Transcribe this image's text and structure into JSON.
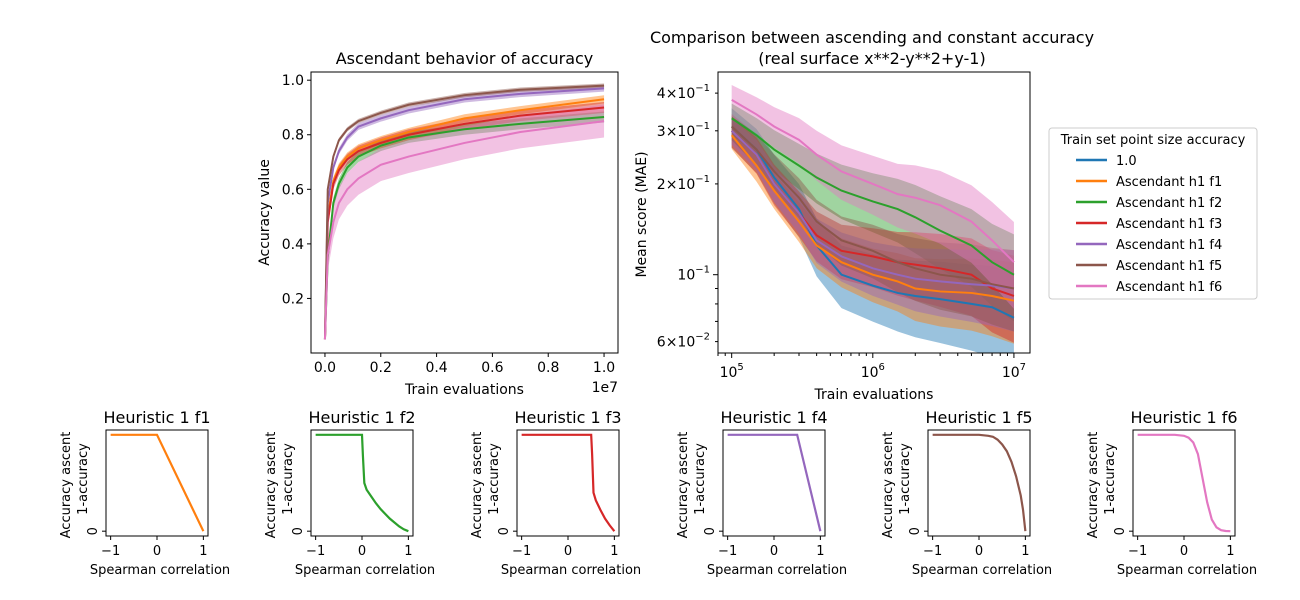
{
  "chart_data": [
    {
      "id": "accuracy",
      "type": "line",
      "title": "Ascendant behavior of accuracy",
      "xlabel": "Train evaluations",
      "ylabel": "Accuracy value",
      "x_offset_label": "1e7",
      "xlim": [
        -0.05,
        1.05
      ],
      "ylim": [
        0.0,
        1.03
      ],
      "x_ticks": [
        0.0,
        0.2,
        0.4,
        0.6,
        0.8,
        1.0
      ],
      "x_tick_labels": [
        "0.0",
        "0.2",
        "0.4",
        "0.6",
        "0.8",
        "1.0"
      ],
      "y_ticks": [
        0.2,
        0.4,
        0.6,
        0.8,
        1.0
      ],
      "y_tick_labels": [
        "0.2",
        "0.4",
        "0.6",
        "0.8",
        "1.0"
      ],
      "x": [
        0.0,
        0.01,
        0.03,
        0.05,
        0.08,
        0.12,
        0.2,
        0.3,
        0.5,
        0.7,
        1.0
      ],
      "series": [
        {
          "name": "Ascendant h1 f1",
          "color": "#ff7f0e",
          "values": [
            0.05,
            0.5,
            0.63,
            0.68,
            0.72,
            0.75,
            0.78,
            0.81,
            0.86,
            0.89,
            0.93
          ],
          "band": 0.015
        },
        {
          "name": "Ascendant h1 f2",
          "color": "#2ca02c",
          "values": [
            0.05,
            0.35,
            0.55,
            0.62,
            0.68,
            0.72,
            0.76,
            0.79,
            0.82,
            0.84,
            0.865
          ],
          "band": 0.02
        },
        {
          "name": "Ascendant h1 f3",
          "color": "#d62728",
          "values": [
            0.05,
            0.48,
            0.62,
            0.67,
            0.71,
            0.74,
            0.77,
            0.8,
            0.84,
            0.87,
            0.9
          ],
          "band": 0.02
        },
        {
          "name": "Ascendant h1 f4",
          "color": "#9467bd",
          "values": [
            0.05,
            0.55,
            0.68,
            0.74,
            0.79,
            0.83,
            0.86,
            0.89,
            0.93,
            0.95,
            0.97
          ],
          "band": 0.012
        },
        {
          "name": "Ascendant h1 f5",
          "color": "#8c564b",
          "values": [
            0.05,
            0.6,
            0.72,
            0.78,
            0.82,
            0.85,
            0.88,
            0.91,
            0.945,
            0.965,
            0.98
          ],
          "band": 0.008
        },
        {
          "name": "Ascendant h1 f6",
          "color": "#e377c2",
          "values": [
            0.05,
            0.36,
            0.48,
            0.55,
            0.6,
            0.64,
            0.69,
            0.72,
            0.77,
            0.81,
            0.85
          ],
          "band": 0.06
        }
      ]
    },
    {
      "id": "comparison",
      "type": "line",
      "title": "Comparison between ascending and constant accuracy",
      "subtitle": "(real surface x**2-y**2+y-1)",
      "xlabel": "Train evaluations",
      "ylabel": "Mean score (MAE)",
      "x_scale": "log",
      "y_scale": "log",
      "xlim": [
        80000,
        13000000
      ],
      "ylim": [
        0.055,
        0.47
      ],
      "x_major_ticks": [
        100000,
        1000000,
        10000000
      ],
      "x_major_labels": [
        {
          "base": "10",
          "exp": "5"
        },
        {
          "base": "10",
          "exp": "6"
        },
        {
          "base": "10",
          "exp": "7"
        }
      ],
      "y_major_ticks": [
        0.1
      ],
      "y_major_labels": [
        {
          "base": "10",
          "exp": "−1"
        }
      ],
      "y_minor_labeled": [
        {
          "value": 0.06,
          "mant": "6",
          "exp": "−2"
        },
        {
          "value": 0.2,
          "mant": "2",
          "exp": "−1"
        },
        {
          "value": 0.3,
          "mant": "3",
          "exp": "−1"
        },
        {
          "value": 0.4,
          "mant": "4",
          "exp": "−1"
        }
      ],
      "legend": {
        "title": "Train set point size accuracy",
        "position": "outside-right"
      },
      "x": [
        100000,
        150000,
        200000,
        300000,
        400000,
        600000,
        1000000,
        1500000,
        2000000,
        3000000,
        5000000,
        7000000,
        10000000
      ],
      "series": [
        {
          "name": "1.0",
          "color": "#1f77b4",
          "values": [
            0.31,
            0.26,
            0.21,
            0.165,
            0.125,
            0.1,
            0.092,
            0.087,
            0.085,
            0.083,
            0.08,
            0.078,
            0.072
          ],
          "band": 0.15
        },
        {
          "name": "Ascendant h1 f1",
          "color": "#ff7f0e",
          "values": [
            0.29,
            0.23,
            0.19,
            0.15,
            0.125,
            0.11,
            0.1,
            0.095,
            0.09,
            0.088,
            0.087,
            0.085,
            0.082
          ],
          "band": 0.1
        },
        {
          "name": "Ascendant h1 f2",
          "color": "#2ca02c",
          "values": [
            0.33,
            0.29,
            0.26,
            0.23,
            0.21,
            0.19,
            0.175,
            0.165,
            0.155,
            0.14,
            0.125,
            0.11,
            0.1
          ],
          "band": 0.12
        },
        {
          "name": "Ascendant h1 f3",
          "color": "#d62728",
          "values": [
            0.3,
            0.25,
            0.2,
            0.16,
            0.135,
            0.12,
            0.115,
            0.11,
            0.108,
            0.105,
            0.1,
            0.09,
            0.085
          ],
          "band": 0.12
        },
        {
          "name": "Ascendant h1 f4",
          "color": "#9467bd",
          "values": [
            0.3,
            0.25,
            0.2,
            0.16,
            0.13,
            0.115,
            0.105,
            0.1,
            0.097,
            0.095,
            0.093,
            0.092,
            0.09
          ],
          "band": 0.1
        },
        {
          "name": "Ascendant h1 f5",
          "color": "#8c564b",
          "values": [
            0.31,
            0.26,
            0.22,
            0.18,
            0.15,
            0.13,
            0.12,
            0.11,
            0.105,
            0.1,
            0.097,
            0.093,
            0.09
          ],
          "band": 0.1
        },
        {
          "name": "Ascendant h1 f6",
          "color": "#e377c2",
          "values": [
            0.38,
            0.34,
            0.31,
            0.28,
            0.25,
            0.22,
            0.2,
            0.185,
            0.18,
            0.17,
            0.15,
            0.13,
            0.11
          ],
          "band": 0.12
        }
      ]
    },
    {
      "id": "h1f1",
      "type": "line",
      "title": "Heuristic 1 f1",
      "xlabel": "Spearman correlation",
      "ylabel": "Accuracy ascent",
      "ylabel2": "1-accuracy",
      "color": "#ff7f0e",
      "xlim": [
        -1.1,
        1.1
      ],
      "ylim": [
        -0.05,
        1.05
      ],
      "x_ticks": [
        -1,
        0,
        1
      ],
      "x_tick_labels": [
        "−1",
        "0",
        "1"
      ],
      "y_ticks": [
        0
      ],
      "y_tick_labels": [
        "0"
      ],
      "x": [
        -1,
        0,
        1
      ],
      "y": [
        1,
        1,
        0
      ]
    },
    {
      "id": "h1f2",
      "type": "line",
      "title": "Heuristic 1 f2",
      "xlabel": "Spearman correlation",
      "ylabel": "Accuracy ascent",
      "ylabel2": "1-accuracy",
      "color": "#2ca02c",
      "xlim": [
        -1.1,
        1.1
      ],
      "ylim": [
        -0.05,
        1.05
      ],
      "x_ticks": [
        -1,
        0,
        1
      ],
      "x_tick_labels": [
        "−1",
        "0",
        "1"
      ],
      "y_ticks": [
        0
      ],
      "y_tick_labels": [
        "0"
      ],
      "x": [
        -1,
        0,
        0.02,
        0.05,
        0.1,
        0.2,
        0.3,
        0.4,
        0.5,
        0.6,
        0.7,
        0.8,
        0.9,
        1.0
      ],
      "y": [
        1,
        1,
        0.78,
        0.5,
        0.43,
        0.36,
        0.29,
        0.23,
        0.18,
        0.13,
        0.09,
        0.05,
        0.02,
        0
      ]
    },
    {
      "id": "h1f3",
      "type": "line",
      "title": "Heuristic 1 f3",
      "xlabel": "Spearman correlation",
      "ylabel": "Accuracy ascent",
      "ylabel2": "1-accuracy",
      "color": "#d62728",
      "xlim": [
        -1.1,
        1.1
      ],
      "ylim": [
        -0.05,
        1.05
      ],
      "x_ticks": [
        -1,
        0,
        1
      ],
      "x_tick_labels": [
        "−1",
        "0",
        "1"
      ],
      "y_ticks": [
        0
      ],
      "y_tick_labels": [
        "0"
      ],
      "x": [
        -1,
        0.5,
        0.52,
        0.55,
        0.6,
        0.7,
        0.8,
        0.9,
        1.0
      ],
      "y": [
        1,
        1,
        0.8,
        0.4,
        0.32,
        0.22,
        0.13,
        0.06,
        0
      ]
    },
    {
      "id": "h1f4",
      "type": "line",
      "title": "Heuristic 1 f4",
      "xlabel": "Spearman correlation",
      "ylabel": "Accuracy ascent",
      "ylabel2": "1-accuracy",
      "color": "#9467bd",
      "xlim": [
        -1.1,
        1.1
      ],
      "ylim": [
        -0.05,
        1.05
      ],
      "x_ticks": [
        -1,
        0,
        1
      ],
      "x_tick_labels": [
        "−1",
        "0",
        "1"
      ],
      "y_ticks": [
        0
      ],
      "y_tick_labels": [
        "0"
      ],
      "x": [
        -1,
        0.5,
        1
      ],
      "y": [
        1,
        1,
        0
      ]
    },
    {
      "id": "h1f5",
      "type": "line",
      "title": "Heuristic 1 f5",
      "xlabel": "Spearman correlation",
      "ylabel": "Accuracy ascent",
      "ylabel2": "1-accuracy",
      "color": "#8c564b",
      "xlim": [
        -1.1,
        1.1
      ],
      "ylim": [
        -0.05,
        1.05
      ],
      "x_ticks": [
        -1,
        0,
        1
      ],
      "x_tick_labels": [
        "−1",
        "0",
        "1"
      ],
      "y_ticks": [
        0
      ],
      "y_tick_labels": [
        "0"
      ],
      "x": [
        -1,
        0,
        0.1,
        0.2,
        0.3,
        0.4,
        0.5,
        0.6,
        0.7,
        0.8,
        0.9,
        0.95,
        1.0
      ],
      "y": [
        1,
        1,
        0.995,
        0.99,
        0.98,
        0.95,
        0.9,
        0.83,
        0.72,
        0.57,
        0.37,
        0.22,
        0
      ]
    },
    {
      "id": "h1f6",
      "type": "line",
      "title": "Heuristic 1 f6",
      "xlabel": "Spearman correlation",
      "ylabel": "Accuracy ascent",
      "ylabel2": "1-accuracy",
      "color": "#e377c2",
      "xlim": [
        -1.1,
        1.1
      ],
      "ylim": [
        -0.05,
        1.05
      ],
      "x_ticks": [
        -1,
        0,
        1
      ],
      "x_tick_labels": [
        "−1",
        "0",
        "1"
      ],
      "y_ticks": [
        0
      ],
      "y_tick_labels": [
        "0"
      ],
      "x": [
        -1,
        -0.2,
        0,
        0.1,
        0.2,
        0.3,
        0.4,
        0.5,
        0.6,
        0.7,
        0.8,
        0.9,
        1.0
      ],
      "y": [
        1,
        1,
        0.99,
        0.97,
        0.92,
        0.8,
        0.55,
        0.3,
        0.12,
        0.04,
        0.01,
        0.002,
        0
      ]
    }
  ]
}
